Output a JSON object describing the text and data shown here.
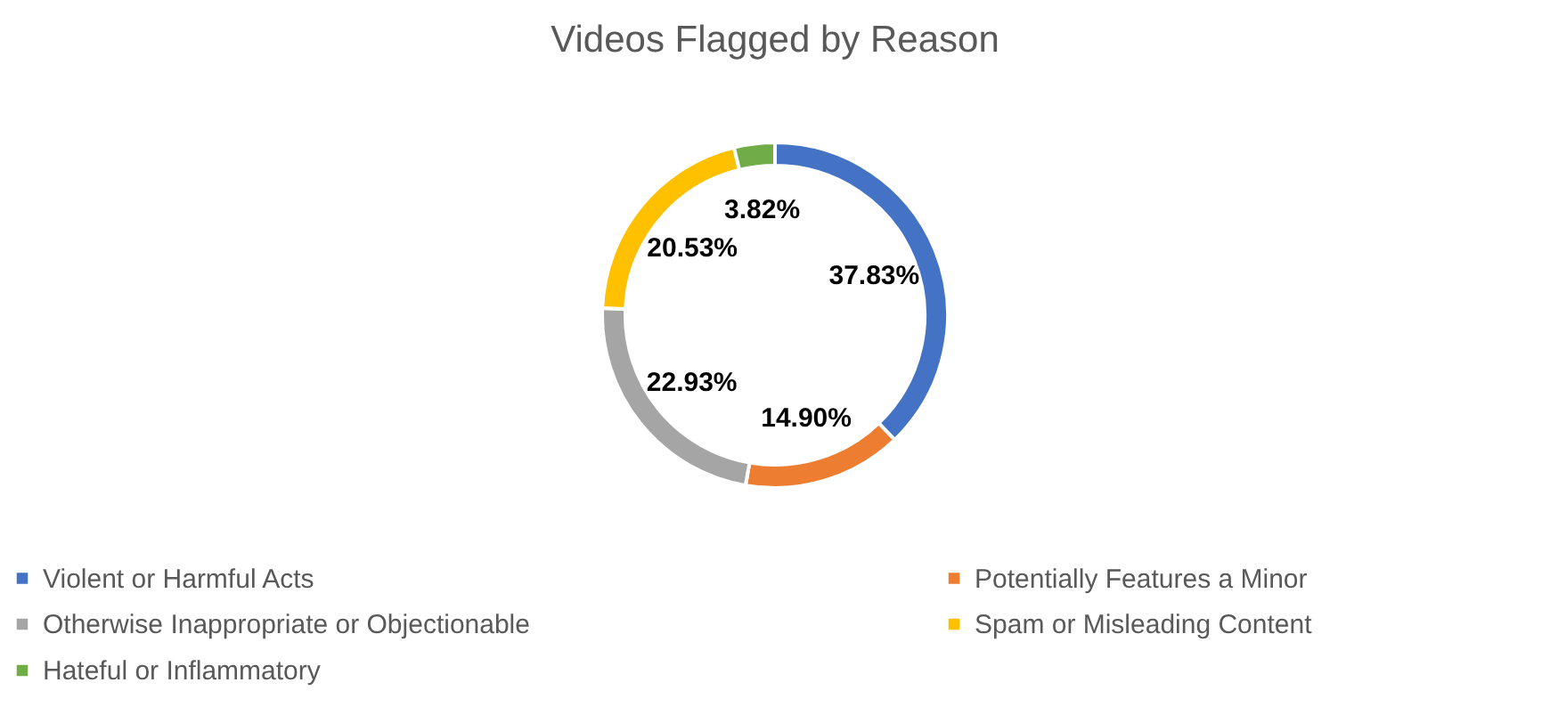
{
  "chart_data": {
    "type": "donut",
    "title": "Videos Flagged by Reason",
    "categories": [
      "Violent or Harmful Acts",
      "Potentially Features a Minor",
      "Otherwise Inappropriate or Objectionable",
      "Spam or Misleading Content",
      "Hateful or Inflammatory"
    ],
    "values": [
      37.83,
      14.9,
      22.93,
      20.53,
      3.82
    ],
    "value_labels": [
      "37.83%",
      "14.90%",
      "22.93%",
      "20.53%",
      "3.82%"
    ],
    "colors": [
      "#4472c4",
      "#ed7d31",
      "#a5a5a5",
      "#ffc000",
      "#70ad47"
    ],
    "legend": "bottom"
  }
}
